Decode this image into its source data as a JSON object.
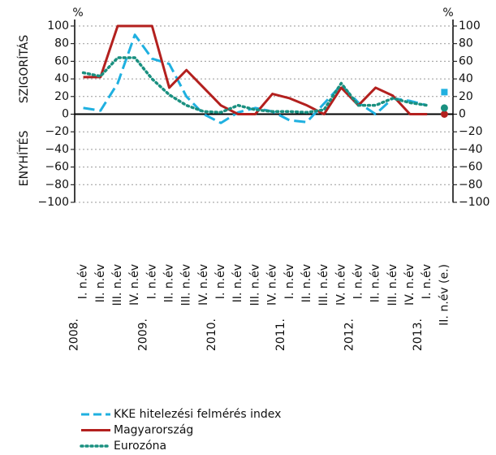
{
  "chart_data": {
    "type": "line",
    "y_unit_label": "%",
    "y2_unit_label": "%",
    "upper_axis_label": "SZIGORÍTÁS",
    "lower_axis_label": "ENYHÍTÉS",
    "categories": [
      [
        "2008.",
        "I. n.év"
      ],
      "II. n.év",
      "III. n.év",
      "IV. n.év",
      [
        "2009.",
        "I. n.év"
      ],
      "II. n.év",
      "III. n.év",
      "IV. n.év",
      [
        "2010.",
        "I. n.év"
      ],
      "II. n.év",
      "III. n.év",
      "IV. n.év",
      [
        "2011.",
        "I. n.év"
      ],
      "II. n.év",
      "III. n.év",
      "IV. n.év",
      [
        "2012.",
        "I. n.év"
      ],
      "II. n.év",
      "III. n.év",
      "IV. n.év",
      [
        "2013.",
        "I. n.év"
      ],
      "II. n.év (e.)"
    ],
    "series": [
      {
        "name": "KKE hitelezési felmérés index",
        "color": "#1fb0e0",
        "dash": "dashed",
        "estimate_marker": "square",
        "values": [
          7,
          4,
          35,
          90,
          63,
          57,
          20,
          0,
          -10,
          2,
          7,
          3,
          -7,
          -9,
          12,
          33,
          13,
          0,
          18,
          15,
          10,
          25
        ]
      },
      {
        "name": "Magyarország",
        "color": "#b3201e",
        "dash": "solid",
        "estimate_marker": "circle",
        "values": [
          42,
          42,
          100,
          100,
          100,
          30,
          50,
          30,
          10,
          0,
          0,
          23,
          18,
          10,
          0,
          30,
          10,
          30,
          21,
          0,
          0,
          0
        ]
      },
      {
        "name": "Eurozóna",
        "color": "#1a9080",
        "dash": "dotted",
        "estimate_marker": "circle",
        "values": [
          47,
          43,
          64,
          64,
          40,
          22,
          10,
          3,
          2,
          10,
          5,
          3,
          3,
          2,
          5,
          35,
          10,
          10,
          18,
          13,
          10,
          7
        ]
      }
    ],
    "ylim": [
      -100,
      100
    ],
    "yticks": [
      100,
      80,
      60,
      40,
      20,
      0,
      {
        "value": -20,
        "label": "−20"
      },
      {
        "value": -40,
        "label": "−40"
      },
      {
        "value": -60,
        "label": "−60"
      },
      {
        "value": -80,
        "label": "−80"
      },
      {
        "value": -100,
        "label": "−100"
      }
    ],
    "y2lim": [
      -100,
      100
    ],
    "y2ticks": [
      100,
      80,
      60,
      40,
      20,
      0,
      {
        "value": -20,
        "label": "−20"
      },
      {
        "value": -40,
        "label": "−40"
      },
      {
        "value": -60,
        "label": "−60"
      },
      {
        "value": -80,
        "label": "−80"
      },
      {
        "value": -100,
        "label": "−100"
      }
    ],
    "grid": true,
    "legend": "bottom-left"
  }
}
